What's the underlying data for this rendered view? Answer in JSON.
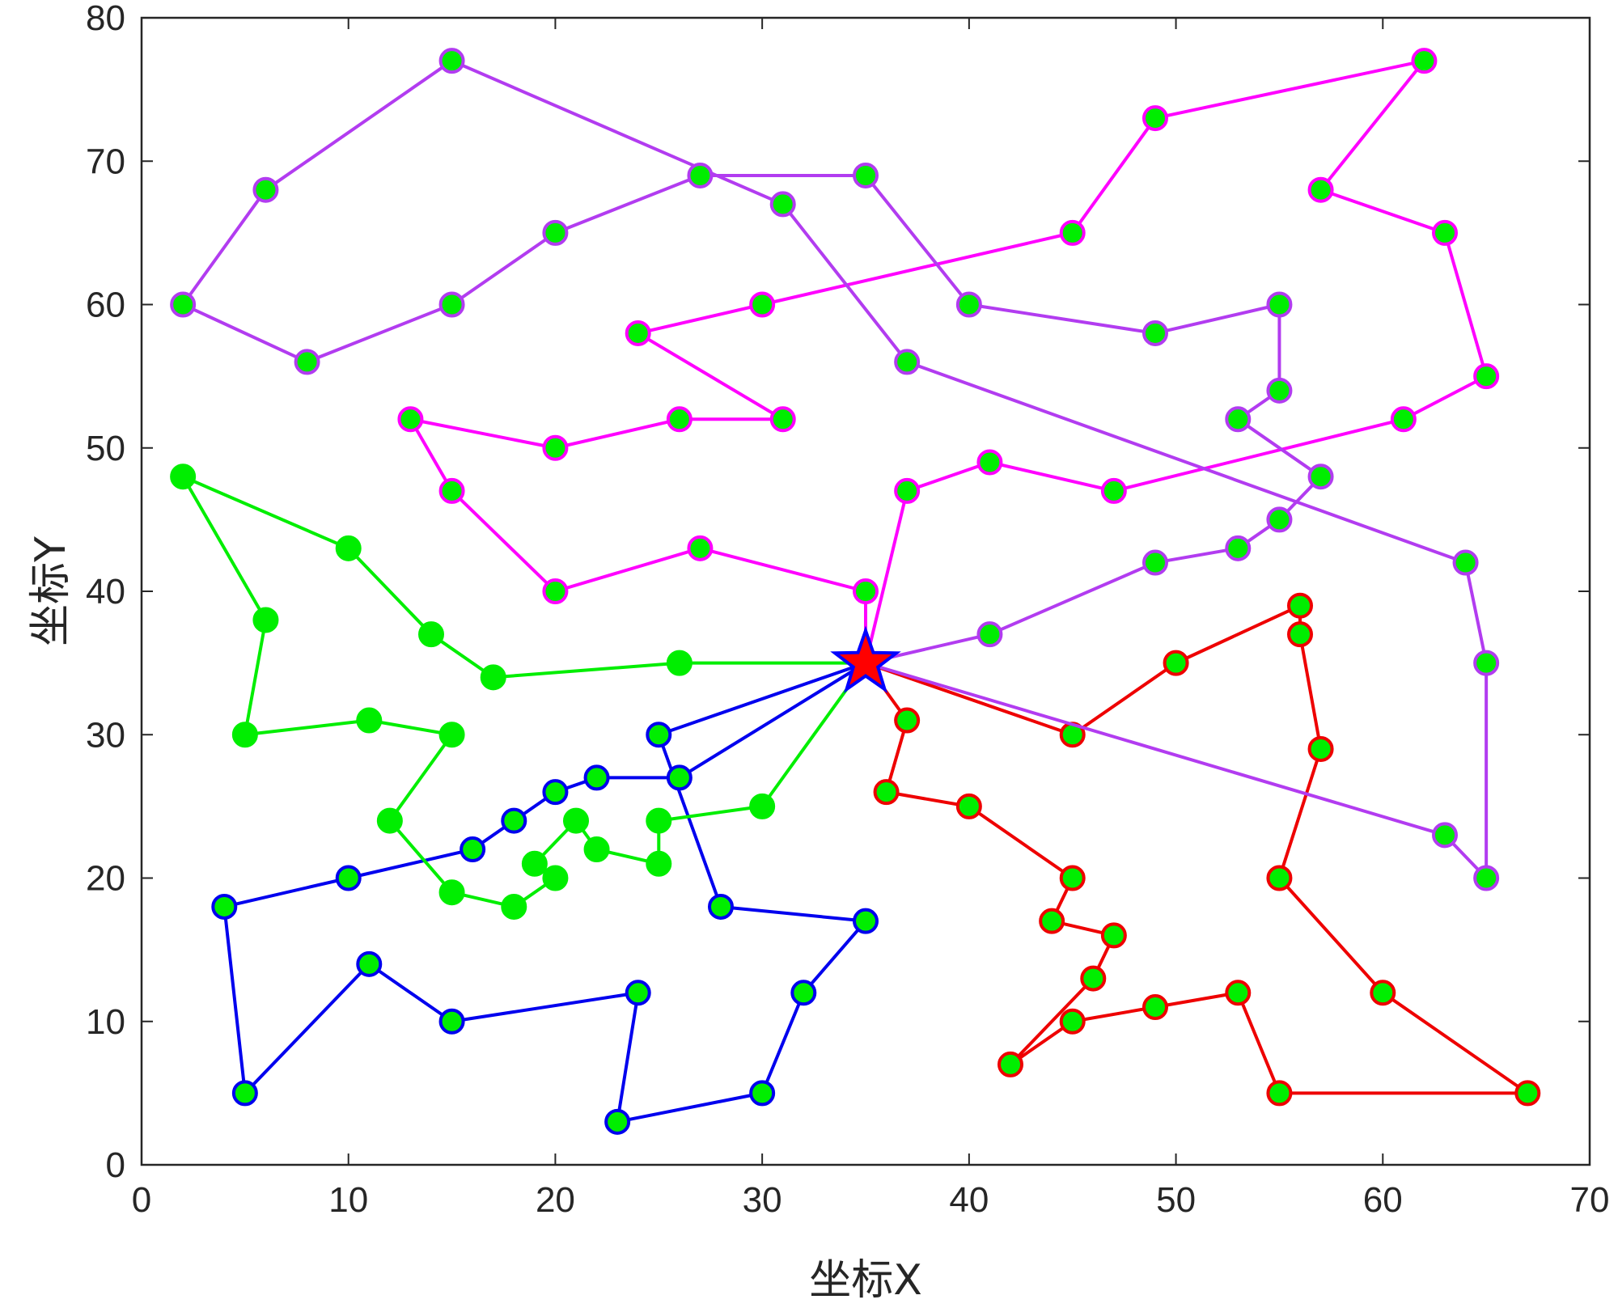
{
  "chart_data": {
    "type": "line",
    "xlabel": "坐标X",
    "ylabel": "坐标Y",
    "xlim": [
      0,
      70
    ],
    "ylim": [
      0,
      80
    ],
    "xticks": [
      0,
      10,
      20,
      30,
      40,
      50,
      60,
      70
    ],
    "yticks": [
      0,
      10,
      20,
      30,
      40,
      50,
      60,
      70,
      80
    ],
    "grid": false,
    "depot": {
      "x": 35,
      "y": 35,
      "marker": "star",
      "fill": "#ff0000",
      "edge": "#0000ff"
    },
    "marker_fill": "#00ee00",
    "series": [
      {
        "color": "#0000ee",
        "points": [
          [
            35,
            35
          ],
          [
            25,
            30
          ],
          [
            28,
            18
          ],
          [
            35,
            17
          ],
          [
            32,
            12
          ],
          [
            30,
            5
          ],
          [
            23,
            3
          ],
          [
            24,
            12
          ],
          [
            15,
            10
          ],
          [
            11,
            14
          ],
          [
            5,
            5
          ],
          [
            4,
            18
          ],
          [
            10,
            20
          ],
          [
            16,
            22
          ],
          [
            18,
            24
          ],
          [
            20,
            26
          ],
          [
            22,
            27
          ],
          [
            26,
            27
          ],
          [
            35,
            35
          ]
        ]
      },
      {
        "color": "#00ee00",
        "points": [
          [
            35,
            35
          ],
          [
            26,
            35
          ],
          [
            17,
            34
          ],
          [
            14,
            37
          ],
          [
            10,
            43
          ],
          [
            2,
            48
          ],
          [
            6,
            38
          ],
          [
            5,
            30
          ],
          [
            11,
            31
          ],
          [
            15,
            30
          ],
          [
            12,
            24
          ],
          [
            15,
            19
          ],
          [
            18,
            18
          ],
          [
            20,
            20
          ],
          [
            19,
            21
          ],
          [
            21,
            24
          ],
          [
            22,
            22
          ],
          [
            25,
            21
          ],
          [
            25,
            24
          ],
          [
            30,
            25
          ],
          [
            35,
            35
          ]
        ]
      },
      {
        "color": "#ee0000",
        "points": [
          [
            35,
            35
          ],
          [
            37,
            31
          ],
          [
            36,
            26
          ],
          [
            40,
            25
          ],
          [
            45,
            20
          ],
          [
            44,
            17
          ],
          [
            47,
            16
          ],
          [
            46,
            13
          ],
          [
            42,
            7
          ],
          [
            45,
            10
          ],
          [
            49,
            11
          ],
          [
            53,
            12
          ],
          [
            55,
            5
          ],
          [
            67,
            5
          ],
          [
            60,
            12
          ],
          [
            55,
            20
          ],
          [
            57,
            29
          ],
          [
            56,
            37
          ],
          [
            56,
            39
          ],
          [
            50,
            35
          ],
          [
            45,
            30
          ],
          [
            35,
            35
          ]
        ]
      },
      {
        "color": "#ff00ff",
        "points": [
          [
            35,
            35
          ],
          [
            37,
            47
          ],
          [
            41,
            49
          ],
          [
            47,
            47
          ],
          [
            61,
            52
          ],
          [
            65,
            55
          ],
          [
            63,
            65
          ],
          [
            57,
            68
          ],
          [
            62,
            77
          ],
          [
            49,
            73
          ],
          [
            45,
            65
          ],
          [
            30,
            60
          ],
          [
            24,
            58
          ],
          [
            31,
            52
          ],
          [
            26,
            52
          ],
          [
            20,
            50
          ],
          [
            13,
            52
          ],
          [
            15,
            47
          ],
          [
            20,
            40
          ],
          [
            27,
            43
          ],
          [
            35,
            40
          ],
          [
            35,
            35
          ]
        ]
      },
      {
        "color": "#b23cf0",
        "points": [
          [
            35,
            35
          ],
          [
            41,
            37
          ],
          [
            49,
            42
          ],
          [
            53,
            43
          ],
          [
            55,
            45
          ],
          [
            57,
            48
          ],
          [
            53,
            52
          ],
          [
            55,
            54
          ],
          [
            55,
            60
          ],
          [
            49,
            58
          ],
          [
            40,
            60
          ],
          [
            35,
            69
          ],
          [
            27,
            69
          ],
          [
            20,
            65
          ],
          [
            15,
            60
          ],
          [
            8,
            56
          ],
          [
            2,
            60
          ],
          [
            6,
            68
          ],
          [
            15,
            77
          ],
          [
            31,
            67
          ],
          [
            37,
            56
          ],
          [
            64,
            42
          ],
          [
            65,
            35
          ],
          [
            65,
            20
          ],
          [
            63,
            23
          ],
          [
            35,
            35
          ]
        ]
      }
    ]
  }
}
